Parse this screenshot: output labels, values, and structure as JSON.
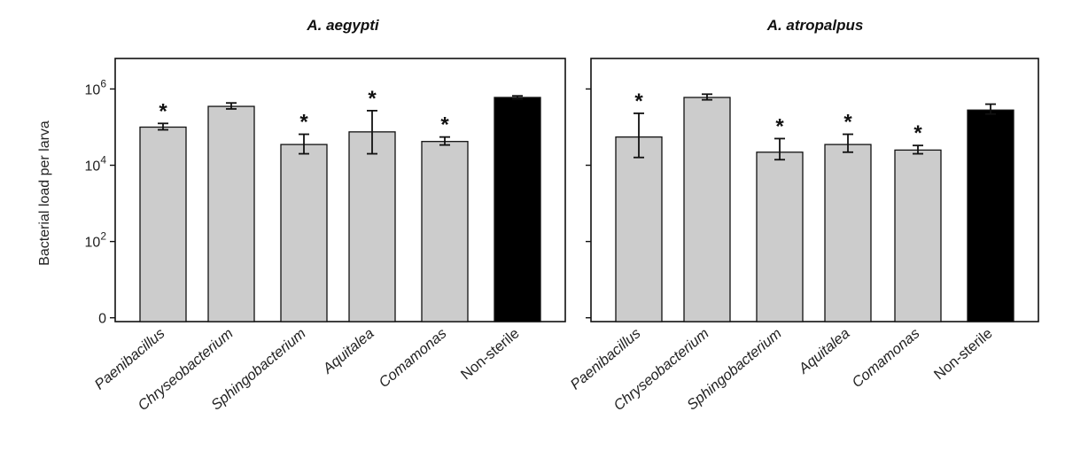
{
  "chart_data": [
    {
      "type": "bar",
      "title": "A. aegypti",
      "ylabel": "Bacterial load per larva",
      "yscale": "log10",
      "ylim_exp": [
        -0.1,
        6.8
      ],
      "yticks": [
        {
          "exp": 0,
          "base": "0",
          "sup": ""
        },
        {
          "exp": 2,
          "base": "10",
          "sup": "2"
        },
        {
          "exp": 4,
          "base": "10",
          "sup": "4"
        },
        {
          "exp": 6,
          "base": "10",
          "sup": "6"
        }
      ],
      "categories": [
        "Paenibacillus",
        "Chryseobacterium",
        "Sphingobacterium",
        "Aquitalea",
        "Comamonas",
        "Non-sterile"
      ],
      "values": [
        100000,
        350000,
        35000,
        75000,
        42000,
        600000
      ],
      "err_low": [
        85000,
        300000,
        20000,
        20000,
        34000,
        550000
      ],
      "err_high": [
        125000,
        430000,
        65000,
        270000,
        55000,
        660000
      ],
      "significant": [
        true,
        false,
        true,
        true,
        true,
        false
      ],
      "bar_colors": [
        "#cccccc",
        "#cccccc",
        "#cccccc",
        "#cccccc",
        "#cccccc",
        "#000000"
      ],
      "star_label": "*"
    },
    {
      "type": "bar",
      "title": "A. atropalpus",
      "ylabel": "",
      "yscale": "log10",
      "ylim_exp": [
        -0.1,
        6.8
      ],
      "yticks": [
        {
          "exp": 0,
          "base": "",
          "sup": ""
        },
        {
          "exp": 2,
          "base": "",
          "sup": ""
        },
        {
          "exp": 4,
          "base": "",
          "sup": ""
        },
        {
          "exp": 6,
          "base": "",
          "sup": ""
        }
      ],
      "categories": [
        "Paenibacillus",
        "Chryseobacterium",
        "Sphingobacterium",
        "Aquitalea",
        "Comamonas",
        "Non-sterile"
      ],
      "values": [
        55000,
        600000,
        22000,
        35000,
        25000,
        280000
      ],
      "err_low": [
        16000,
        520000,
        14000,
        22000,
        20000,
        220000
      ],
      "err_high": [
        230000,
        730000,
        50000,
        65000,
        33000,
        400000
      ],
      "significant": [
        true,
        false,
        true,
        true,
        true,
        false
      ],
      "bar_colors": [
        "#cccccc",
        "#cccccc",
        "#cccccc",
        "#cccccc",
        "#cccccc",
        "#000000"
      ],
      "star_label": "*"
    }
  ]
}
